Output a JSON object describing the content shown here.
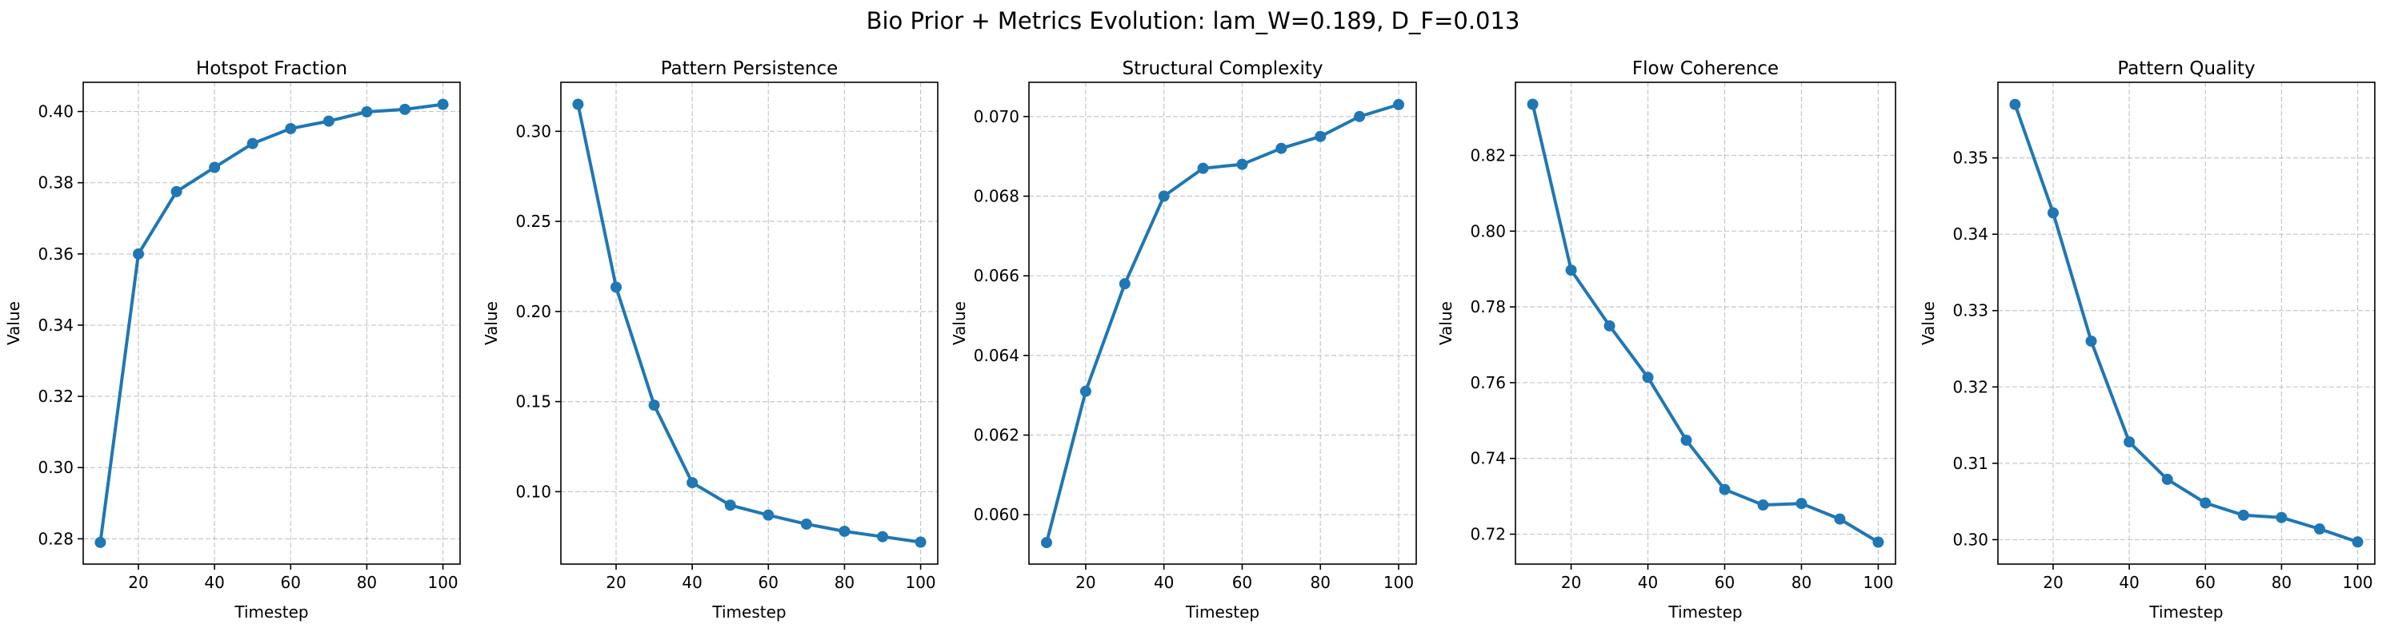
{
  "figure": {
    "suptitle": "Bio Prior + Metrics Evolution: lam_W=0.189, D_F=0.013"
  },
  "style": {
    "line_color": "#1f77b4",
    "grid_color": "#b0b0b0",
    "grid": true,
    "grid_style": "dashed"
  },
  "chart_data": [
    {
      "type": "line",
      "title": "Hotspot Fraction",
      "xlabel": "Timestep",
      "ylabel": "Value",
      "x": [
        10,
        20,
        30,
        40,
        50,
        60,
        70,
        80,
        90,
        100
      ],
      "y": [
        0.279,
        0.36,
        0.3775,
        0.3843,
        0.391,
        0.3952,
        0.3973,
        0.3999,
        0.4006,
        0.402
      ],
      "xlim": [
        5.5,
        104.5
      ],
      "ylim": [
        0.2729,
        0.4082
      ],
      "xticks": [
        20,
        40,
        60,
        80,
        100
      ],
      "xtick_labels": [
        "20",
        "40",
        "60",
        "80",
        "100"
      ],
      "yticks": [
        0.28,
        0.3,
        0.32,
        0.34,
        0.36,
        0.38,
        0.4
      ],
      "ytick_labels": [
        "0.28",
        "0.30",
        "0.32",
        "0.34",
        "0.36",
        "0.38",
        "0.40"
      ]
    },
    {
      "type": "line",
      "title": "Pattern Persistence",
      "xlabel": "Timestep",
      "ylabel": "Value",
      "x": [
        10,
        20,
        30,
        40,
        50,
        60,
        70,
        80,
        90,
        100
      ],
      "y": [
        0.315,
        0.2135,
        0.148,
        0.105,
        0.0925,
        0.087,
        0.082,
        0.078,
        0.075,
        0.072
      ],
      "xlim": [
        5.5,
        104.5
      ],
      "ylim": [
        0.0598,
        0.3272
      ],
      "xticks": [
        20,
        40,
        60,
        80,
        100
      ],
      "xtick_labels": [
        "20",
        "40",
        "60",
        "80",
        "100"
      ],
      "yticks": [
        0.1,
        0.15,
        0.2,
        0.25,
        0.3
      ],
      "ytick_labels": [
        "0.10",
        "0.15",
        "0.20",
        "0.25",
        "0.30"
      ]
    },
    {
      "type": "line",
      "title": "Structural Complexity",
      "xlabel": "Timestep",
      "ylabel": "Value",
      "x": [
        10,
        20,
        30,
        40,
        50,
        60,
        70,
        80,
        90,
        100
      ],
      "y": [
        0.0593,
        0.0631,
        0.0658,
        0.068,
        0.0687,
        0.0688,
        0.0692,
        0.0695,
        0.07,
        0.0703
      ],
      "xlim": [
        5.5,
        104.5
      ],
      "ylim": [
        0.05876,
        0.07086
      ],
      "xticks": [
        20,
        40,
        60,
        80,
        100
      ],
      "xtick_labels": [
        "20",
        "40",
        "60",
        "80",
        "100"
      ],
      "yticks": [
        0.06,
        0.062,
        0.064,
        0.066,
        0.068,
        0.07
      ],
      "ytick_labels": [
        "0.060",
        "0.062",
        "0.064",
        "0.066",
        "0.068",
        "0.070"
      ]
    },
    {
      "type": "line",
      "title": "Flow Coherence",
      "xlabel": "Timestep",
      "ylabel": "Value",
      "x": [
        10,
        20,
        30,
        40,
        50,
        60,
        70,
        80,
        90,
        100
      ],
      "y": [
        0.8335,
        0.7897,
        0.775,
        0.7614,
        0.7448,
        0.7318,
        0.7277,
        0.7281,
        0.724,
        0.7179
      ],
      "xlim": [
        5.5,
        104.5
      ],
      "ylim": [
        0.7121,
        0.8393
      ],
      "xticks": [
        20,
        40,
        60,
        80,
        100
      ],
      "xtick_labels": [
        "20",
        "40",
        "60",
        "80",
        "100"
      ],
      "yticks": [
        0.72,
        0.74,
        0.76,
        0.78,
        0.8,
        0.82
      ],
      "ytick_labels": [
        "0.72",
        "0.74",
        "0.76",
        "0.78",
        "0.80",
        "0.82"
      ]
    },
    {
      "type": "line",
      "title": "Pattern Quality",
      "xlabel": "Timestep",
      "ylabel": "Value",
      "x": [
        10,
        20,
        30,
        40,
        50,
        60,
        70,
        80,
        90,
        100
      ],
      "y": [
        0.357,
        0.3428,
        0.326,
        0.3128,
        0.3079,
        0.3048,
        0.3032,
        0.3029,
        0.3014,
        0.2997
      ],
      "xlim": [
        5.5,
        104.5
      ],
      "ylim": [
        0.2968,
        0.3599
      ],
      "xticks": [
        20,
        40,
        60,
        80,
        100
      ],
      "xtick_labels": [
        "20",
        "40",
        "60",
        "80",
        "100"
      ],
      "yticks": [
        0.3,
        0.31,
        0.32,
        0.33,
        0.34,
        0.35
      ],
      "ytick_labels": [
        "0.30",
        "0.31",
        "0.32",
        "0.33",
        "0.34",
        "0.35"
      ]
    }
  ]
}
